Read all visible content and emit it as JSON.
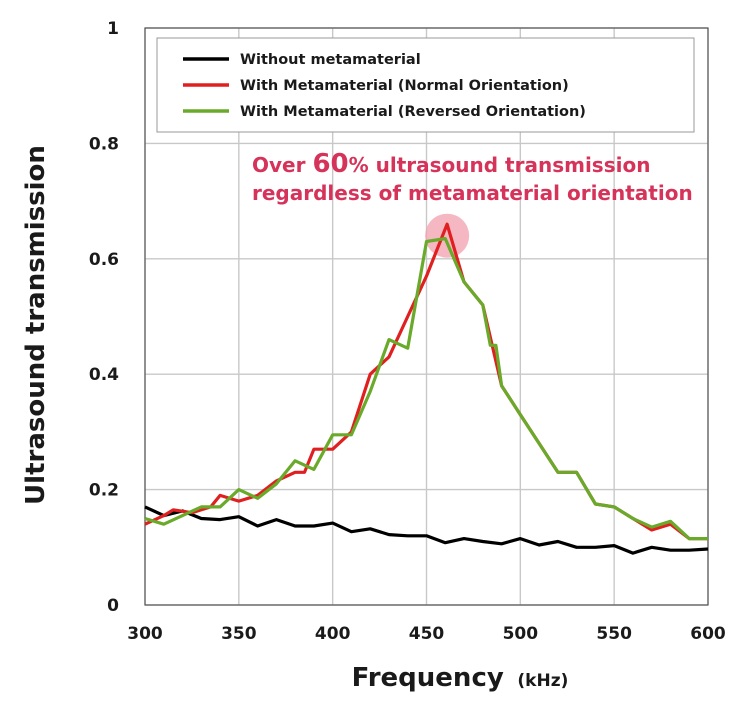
{
  "chart_data": {
    "type": "line",
    "xlabel": "Frequency",
    "xunit": "(kHz)",
    "ylabel": "Ultrasound transmission",
    "xlim": [
      300,
      600
    ],
    "ylim": [
      0,
      1
    ],
    "x_ticks": [
      "300",
      "350",
      "400",
      "450",
      "500",
      "550",
      "600"
    ],
    "y_ticks": [
      "0",
      "0.2",
      "0.4",
      "0.6",
      "0.8",
      "1"
    ],
    "grid": true,
    "legend_position": "top",
    "annotation": {
      "prefix": "Over ",
      "highlight": "60",
      "suffix": "% ultrasound transmission",
      "line2": "regardless of metamaterial orientation",
      "color": "#d6335a",
      "marker_x": 461,
      "marker_y": 0.64
    },
    "series": [
      {
        "name": "Without metamaterial",
        "color": "#000000",
        "points": [
          [
            300,
            0.17
          ],
          [
            310,
            0.155
          ],
          [
            320,
            0.163
          ],
          [
            330,
            0.15
          ],
          [
            340,
            0.148
          ],
          [
            350,
            0.153
          ],
          [
            360,
            0.137
          ],
          [
            370,
            0.148
          ],
          [
            380,
            0.137
          ],
          [
            390,
            0.137
          ],
          [
            400,
            0.142
          ],
          [
            410,
            0.127
          ],
          [
            420,
            0.132
          ],
          [
            430,
            0.122
          ],
          [
            440,
            0.12
          ],
          [
            450,
            0.12
          ],
          [
            460,
            0.108
          ],
          [
            470,
            0.115
          ],
          [
            480,
            0.11
          ],
          [
            490,
            0.106
          ],
          [
            500,
            0.115
          ],
          [
            510,
            0.104
          ],
          [
            520,
            0.11
          ],
          [
            530,
            0.1
          ],
          [
            540,
            0.1
          ],
          [
            550,
            0.103
          ],
          [
            560,
            0.09
          ],
          [
            570,
            0.1
          ],
          [
            580,
            0.095
          ],
          [
            590,
            0.095
          ],
          [
            600,
            0.097
          ]
        ]
      },
      {
        "name": "With Metamaterial (Normal Orientation)",
        "color": "#e02020",
        "points": [
          [
            300,
            0.14
          ],
          [
            310,
            0.155
          ],
          [
            315,
            0.165
          ],
          [
            325,
            0.16
          ],
          [
            335,
            0.17
          ],
          [
            340,
            0.19
          ],
          [
            350,
            0.18
          ],
          [
            360,
            0.19
          ],
          [
            370,
            0.215
          ],
          [
            380,
            0.23
          ],
          [
            385,
            0.23
          ],
          [
            390,
            0.27
          ],
          [
            400,
            0.27
          ],
          [
            410,
            0.3
          ],
          [
            420,
            0.4
          ],
          [
            430,
            0.43
          ],
          [
            440,
            0.5
          ],
          [
            450,
            0.57
          ],
          [
            461,
            0.66
          ],
          [
            470,
            0.56
          ],
          [
            480,
            0.52
          ],
          [
            490,
            0.38
          ],
          [
            500,
            0.33
          ],
          [
            510,
            0.28
          ],
          [
            520,
            0.23
          ],
          [
            530,
            0.23
          ],
          [
            540,
            0.175
          ],
          [
            550,
            0.17
          ],
          [
            560,
            0.15
          ],
          [
            570,
            0.13
          ],
          [
            580,
            0.14
          ],
          [
            590,
            0.115
          ],
          [
            600,
            0.115
          ]
        ]
      },
      {
        "name": "With Metamaterial (Reversed Orientation)",
        "color": "#6aaa2a",
        "points": [
          [
            300,
            0.15
          ],
          [
            310,
            0.14
          ],
          [
            320,
            0.155
          ],
          [
            330,
            0.17
          ],
          [
            340,
            0.17
          ],
          [
            350,
            0.2
          ],
          [
            360,
            0.185
          ],
          [
            370,
            0.21
          ],
          [
            380,
            0.25
          ],
          [
            390,
            0.235
          ],
          [
            400,
            0.295
          ],
          [
            410,
            0.295
          ],
          [
            420,
            0.37
          ],
          [
            430,
            0.46
          ],
          [
            440,
            0.445
          ],
          [
            450,
            0.63
          ],
          [
            460,
            0.635
          ],
          [
            470,
            0.56
          ],
          [
            480,
            0.52
          ],
          [
            484,
            0.45
          ],
          [
            487,
            0.45
          ],
          [
            490,
            0.38
          ],
          [
            500,
            0.33
          ],
          [
            510,
            0.28
          ],
          [
            520,
            0.23
          ],
          [
            530,
            0.23
          ],
          [
            540,
            0.175
          ],
          [
            550,
            0.17
          ],
          [
            560,
            0.15
          ],
          [
            570,
            0.135
          ],
          [
            580,
            0.145
          ],
          [
            590,
            0.115
          ],
          [
            600,
            0.115
          ]
        ]
      }
    ]
  }
}
